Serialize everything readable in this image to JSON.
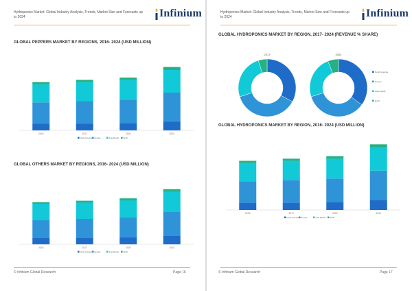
{
  "colors": {
    "north_america": "#1e6cc8",
    "europe": "#2f93d7",
    "asia_pacific": "#12c9d8",
    "row": "#27b083",
    "brand": "#1b3a6b",
    "rule": "#e0b35b"
  },
  "legend_labels": [
    "North America",
    "Europe",
    "Asia-Pacific",
    "RoW"
  ],
  "pages": [
    {
      "header": "Hydroponics Market: Global Industry Analysis, Trends, Market Size and Forecasts up to 2024",
      "logo_text": "Infinium",
      "footer_left": "© Infinium Global Research",
      "footer_right": "Page 16"
    },
    {
      "header": "Hydroponics Market: Global Industry Analysis, Trends, Market Size and Forecasts up to 2024",
      "logo_text": "Infinium",
      "footer_left": "© Infinium Global Research",
      "footer_right": "Page 17"
    }
  ],
  "chart_data": [
    {
      "id": "peppers",
      "type": "bar",
      "stacked": true,
      "title": "GLOBAL PEPPERS MARKET BY REGIONS, 2016- 2024 (USD MILLION)",
      "categories": [
        "2016",
        "2017",
        "2020",
        "2024"
      ],
      "ylim": [
        0,
        100
      ],
      "series": [
        {
          "name": "North America",
          "values": [
            9,
            9,
            9.5,
            12
          ]
        },
        {
          "name": "Europe",
          "values": [
            28,
            30,
            31,
            38
          ]
        },
        {
          "name": "Asia-Pacific",
          "values": [
            24,
            25,
            26,
            30
          ]
        },
        {
          "name": "RoW",
          "values": [
            3,
            3,
            3.5,
            4
          ]
        }
      ],
      "legend": "bottom"
    },
    {
      "id": "others",
      "type": "bar",
      "stacked": true,
      "title": "GLOBAL OTHERS MARKET BY REGIONS, 2016- 2024 (USD MILLION)",
      "categories": [
        "2016",
        "2017",
        "2020",
        "2024"
      ],
      "ylim": [
        0,
        100
      ],
      "series": [
        {
          "name": "North America",
          "values": [
            9,
            9,
            10,
            12
          ]
        },
        {
          "name": "Europe",
          "values": [
            26,
            28,
            29,
            35
          ]
        },
        {
          "name": "Asia-Pacific",
          "values": [
            24,
            24,
            25,
            30
          ]
        },
        {
          "name": "RoW",
          "values": [
            2.5,
            2.5,
            3,
            3.5
          ]
        }
      ],
      "legend": "bottom"
    },
    {
      "id": "share",
      "type": "pie",
      "donut": true,
      "title": "GLOBAL HYDROPONICS MARKET BY REGION, 2017- 2024 (REVENUE % SHARE)",
      "charts": [
        {
          "label": "2017",
          "series_values": [
            33,
            37,
            25,
            5
          ]
        },
        {
          "label": "2024",
          "series_values": [
            35,
            35,
            24,
            6
          ]
        }
      ],
      "series_names": [
        "North America",
        "Europe",
        "Asia-Pacific",
        "RoW"
      ],
      "legend": "right"
    },
    {
      "id": "hydroponics",
      "type": "bar",
      "stacked": true,
      "title": "GLOBAL HYDROPONICS MARKET BY REGION, 2016- 2024 (USD MILLION)",
      "categories": [
        "2016",
        "2017",
        "2020",
        "2024"
      ],
      "ylim": [
        0,
        100
      ],
      "series": [
        {
          "name": "North America",
          "values": [
            10,
            10,
            11,
            14
          ]
        },
        {
          "name": "Europe",
          "values": [
            30,
            32,
            33,
            41
          ]
        },
        {
          "name": "Asia-Pacific",
          "values": [
            26,
            27,
            28,
            33
          ]
        },
        {
          "name": "RoW",
          "values": [
            3,
            3,
            3.5,
            4
          ]
        }
      ],
      "legend": "bottom"
    }
  ]
}
